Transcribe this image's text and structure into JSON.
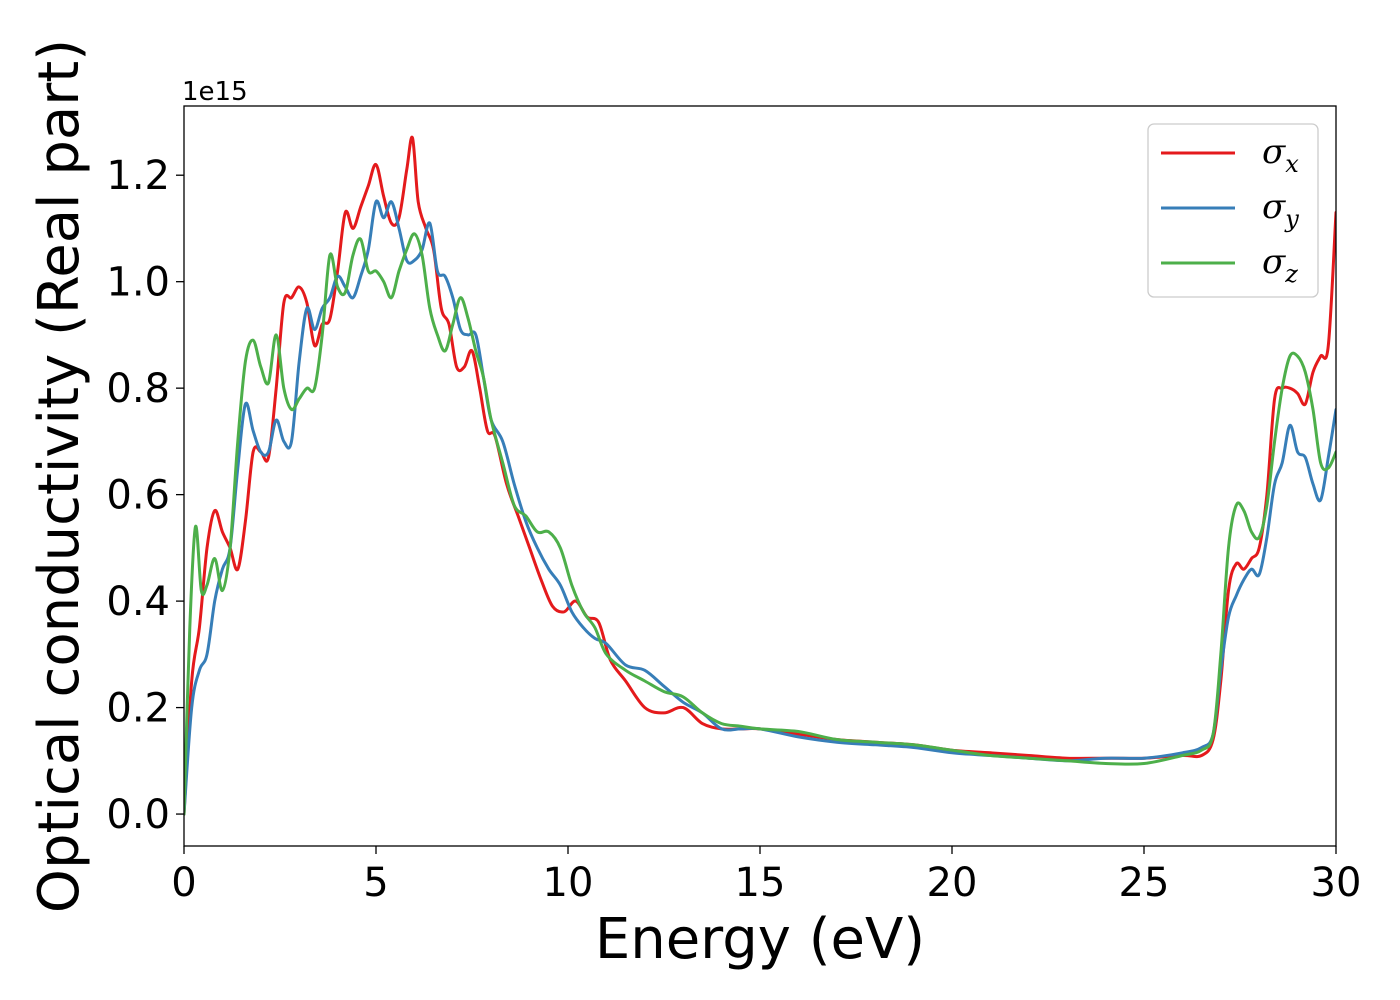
{
  "chart_data": {
    "type": "line",
    "xlabel": "Energy (eV)",
    "ylabel": "Optical conductivity (Real part)",
    "offset_text": "1e15",
    "xlim": [
      0,
      30
    ],
    "ylim": [
      -0.06,
      1.33
    ],
    "xticks": [
      0,
      5,
      10,
      15,
      20,
      25,
      30
    ],
    "xtick_labels": [
      "0",
      "5",
      "10",
      "15",
      "20",
      "25",
      "30"
    ],
    "yticks": [
      0.0,
      0.2,
      0.4,
      0.6,
      0.8,
      1.0,
      1.2
    ],
    "ytick_labels": [
      "0.0",
      "0.2",
      "0.4",
      "0.6",
      "0.8",
      "1.0",
      "1.2"
    ],
    "grid": false,
    "legend_position": "top-right",
    "series": [
      {
        "name": "σx",
        "symbol": "σ",
        "subscript": "x",
        "color": "#e41a1c",
        "x": [
          0,
          0.2,
          0.4,
          0.6,
          0.8,
          1.0,
          1.2,
          1.4,
          1.6,
          1.8,
          2.0,
          2.2,
          2.4,
          2.6,
          2.8,
          3.0,
          3.2,
          3.4,
          3.6,
          3.8,
          4.0,
          4.2,
          4.4,
          4.6,
          4.8,
          5.0,
          5.2,
          5.4,
          5.6,
          5.8,
          5.95,
          6.1,
          6.3,
          6.5,
          6.7,
          6.9,
          7.1,
          7.3,
          7.5,
          7.7,
          7.9,
          8.1,
          8.4,
          8.7,
          9.0,
          9.3,
          9.6,
          9.9,
          10.2,
          10.5,
          10.8,
          11.1,
          11.5,
          12.0,
          12.5,
          13.0,
          13.5,
          14.0,
          14.5,
          15.0,
          16.0,
          17.0,
          18.0,
          19.0,
          20.0,
          21.0,
          22.0,
          23.0,
          24.0,
          25.0,
          26.0,
          26.5,
          26.8,
          27.0,
          27.2,
          27.4,
          27.6,
          27.8,
          28.0,
          28.2,
          28.4,
          28.6,
          28.8,
          29.0,
          29.2,
          29.4,
          29.6,
          29.8,
          30.0
        ],
        "y": [
          0.0,
          0.25,
          0.35,
          0.5,
          0.57,
          0.53,
          0.5,
          0.46,
          0.55,
          0.68,
          0.68,
          0.67,
          0.8,
          0.96,
          0.97,
          0.99,
          0.96,
          0.88,
          0.92,
          0.93,
          1.02,
          1.13,
          1.1,
          1.14,
          1.18,
          1.22,
          1.16,
          1.11,
          1.12,
          1.21,
          1.27,
          1.15,
          1.1,
          1.06,
          0.95,
          0.92,
          0.84,
          0.84,
          0.87,
          0.8,
          0.72,
          0.71,
          0.62,
          0.56,
          0.5,
          0.44,
          0.39,
          0.38,
          0.4,
          0.37,
          0.36,
          0.29,
          0.25,
          0.2,
          0.19,
          0.2,
          0.17,
          0.16,
          0.16,
          0.16,
          0.15,
          0.14,
          0.135,
          0.13,
          0.12,
          0.115,
          0.11,
          0.105,
          0.105,
          0.105,
          0.11,
          0.11,
          0.14,
          0.25,
          0.42,
          0.47,
          0.46,
          0.48,
          0.5,
          0.6,
          0.78,
          0.8,
          0.8,
          0.79,
          0.77,
          0.83,
          0.86,
          0.88,
          1.13
        ]
      },
      {
        "name": "σy",
        "symbol": "σ",
        "subscript": "y",
        "color": "#377eb8",
        "x": [
          0,
          0.2,
          0.4,
          0.6,
          0.8,
          1.0,
          1.2,
          1.4,
          1.6,
          1.8,
          2.0,
          2.2,
          2.4,
          2.6,
          2.8,
          3.0,
          3.2,
          3.4,
          3.6,
          3.8,
          4.0,
          4.2,
          4.4,
          4.6,
          4.8,
          5.0,
          5.2,
          5.4,
          5.6,
          5.8,
          6.0,
          6.2,
          6.4,
          6.6,
          6.8,
          7.0,
          7.2,
          7.4,
          7.6,
          7.8,
          8.0,
          8.3,
          8.6,
          8.9,
          9.2,
          9.5,
          9.8,
          10.1,
          10.4,
          10.7,
          11.0,
          11.5,
          12.0,
          12.5,
          13.0,
          13.5,
          14.0,
          14.5,
          15.0,
          16.0,
          17.0,
          18.0,
          19.0,
          20.0,
          21.0,
          22.0,
          23.0,
          24.0,
          25.0,
          26.0,
          26.5,
          26.8,
          27.0,
          27.2,
          27.4,
          27.6,
          27.8,
          28.0,
          28.2,
          28.4,
          28.6,
          28.8,
          29.0,
          29.2,
          29.4,
          29.6,
          29.8,
          30.0
        ],
        "y": [
          0.0,
          0.2,
          0.27,
          0.3,
          0.4,
          0.46,
          0.5,
          0.65,
          0.77,
          0.72,
          0.68,
          0.68,
          0.74,
          0.7,
          0.7,
          0.85,
          0.95,
          0.91,
          0.95,
          0.97,
          1.01,
          0.99,
          0.97,
          1.01,
          1.06,
          1.15,
          1.12,
          1.15,
          1.1,
          1.04,
          1.04,
          1.06,
          1.11,
          1.02,
          1.01,
          0.97,
          0.91,
          0.9,
          0.9,
          0.82,
          0.74,
          0.7,
          0.62,
          0.55,
          0.5,
          0.46,
          0.43,
          0.38,
          0.35,
          0.33,
          0.32,
          0.28,
          0.27,
          0.24,
          0.21,
          0.19,
          0.16,
          0.16,
          0.16,
          0.145,
          0.135,
          0.13,
          0.125,
          0.115,
          0.11,
          0.105,
          0.1,
          0.105,
          0.105,
          0.115,
          0.125,
          0.15,
          0.27,
          0.37,
          0.41,
          0.44,
          0.46,
          0.45,
          0.52,
          0.62,
          0.66,
          0.73,
          0.68,
          0.67,
          0.62,
          0.59,
          0.67,
          0.76
        ]
      },
      {
        "name": "σz",
        "symbol": "σ",
        "subscript": "z",
        "color": "#4daf4a",
        "x": [
          0,
          0.15,
          0.3,
          0.45,
          0.6,
          0.8,
          1.0,
          1.2,
          1.4,
          1.6,
          1.8,
          2.0,
          2.2,
          2.4,
          2.6,
          2.8,
          3.0,
          3.2,
          3.4,
          3.6,
          3.8,
          4.0,
          4.2,
          4.4,
          4.6,
          4.8,
          5.0,
          5.2,
          5.4,
          5.6,
          5.8,
          6.0,
          6.2,
          6.4,
          6.6,
          6.8,
          7.0,
          7.2,
          7.4,
          7.6,
          7.8,
          8.0,
          8.3,
          8.6,
          8.9,
          9.2,
          9.5,
          9.8,
          10.1,
          10.4,
          10.7,
          11.0,
          11.5,
          12.0,
          12.5,
          13.0,
          13.5,
          14.0,
          14.5,
          15.0,
          16.0,
          17.0,
          18.0,
          19.0,
          20.0,
          21.0,
          22.0,
          23.0,
          24.0,
          25.0,
          26.0,
          26.5,
          26.8,
          27.0,
          27.2,
          27.4,
          27.6,
          27.8,
          28.0,
          28.2,
          28.4,
          28.6,
          28.8,
          29.0,
          29.2,
          29.4,
          29.6,
          29.8,
          30.0
        ],
        "y": [
          0.0,
          0.35,
          0.54,
          0.42,
          0.43,
          0.48,
          0.42,
          0.5,
          0.7,
          0.85,
          0.89,
          0.84,
          0.81,
          0.9,
          0.8,
          0.76,
          0.78,
          0.8,
          0.8,
          0.9,
          1.05,
          0.99,
          0.98,
          1.05,
          1.08,
          1.02,
          1.02,
          1.0,
          0.97,
          1.02,
          1.06,
          1.09,
          1.05,
          0.95,
          0.9,
          0.87,
          0.92,
          0.97,
          0.93,
          0.87,
          0.82,
          0.74,
          0.66,
          0.58,
          0.56,
          0.53,
          0.53,
          0.5,
          0.43,
          0.38,
          0.35,
          0.3,
          0.27,
          0.25,
          0.23,
          0.22,
          0.19,
          0.17,
          0.165,
          0.16,
          0.155,
          0.14,
          0.135,
          0.13,
          0.12,
          0.11,
          0.105,
          0.1,
          0.095,
          0.095,
          0.11,
          0.12,
          0.15,
          0.3,
          0.5,
          0.58,
          0.57,
          0.53,
          0.52,
          0.58,
          0.7,
          0.8,
          0.86,
          0.86,
          0.83,
          0.76,
          0.66,
          0.65,
          0.68
        ]
      }
    ]
  }
}
